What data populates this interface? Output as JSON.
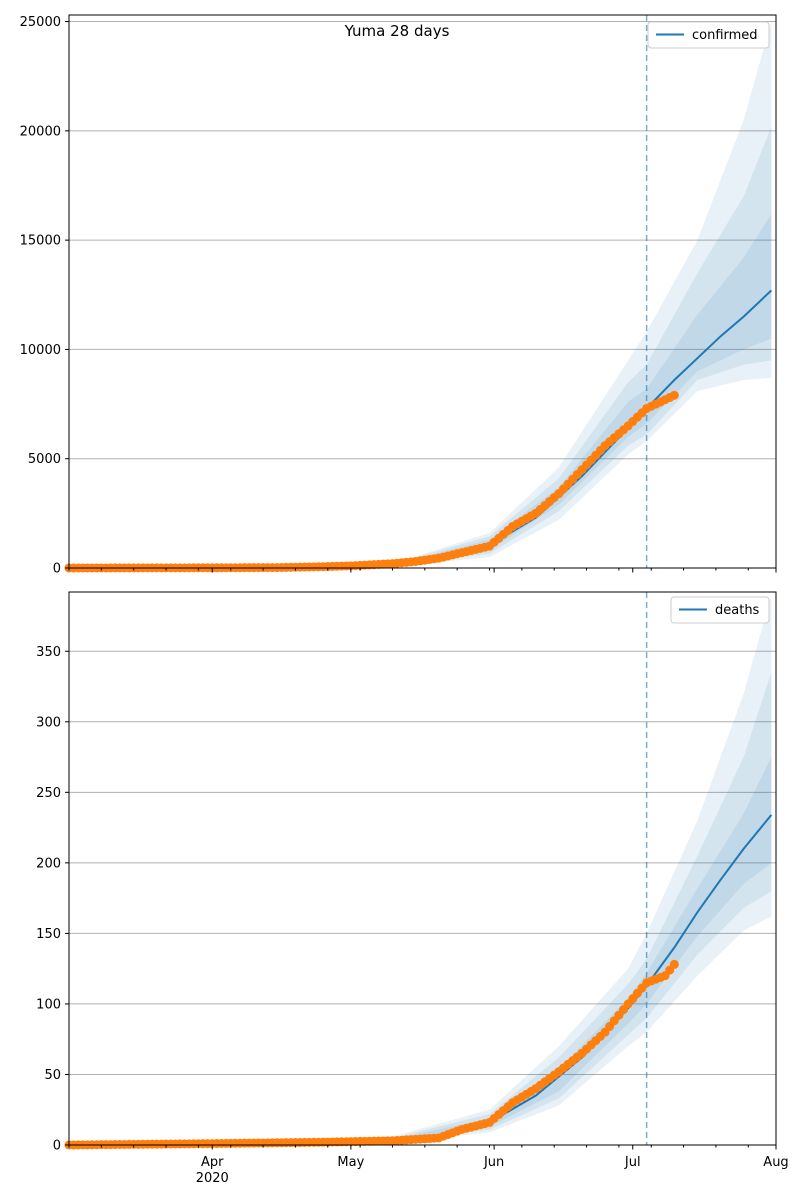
{
  "figure": {
    "title": "Yuma 28 days"
  },
  "chart_data": [
    {
      "type": "line",
      "name": "confirmed-panel",
      "ylim": [
        0,
        25300
      ],
      "yticks": [
        0,
        5000,
        10000,
        15000,
        20000,
        25000
      ],
      "grid": "horizontal",
      "legend": {
        "placement": "top-right",
        "entries": [
          "confirmed"
        ]
      },
      "forecast_start": "2020-07-04",
      "median": {
        "name": "confirmed",
        "x": [
          "2020-05-10",
          "2020-05-20",
          "2020-05-31",
          "2020-06-10",
          "2020-06-20",
          "2020-06-30",
          "2020-07-04",
          "2020-07-10",
          "2020-07-15",
          "2020-07-20",
          "2020-07-25",
          "2020-07-31"
        ],
        "y": [
          120,
          350,
          1050,
          2300,
          4200,
          6400,
          7300,
          8600,
          9600,
          10600,
          11500,
          12700
        ]
      },
      "bands": [
        {
          "level": "outer",
          "x": [
            "2020-05-10",
            "2020-05-31",
            "2020-06-15",
            "2020-06-30",
            "2020-07-04",
            "2020-07-15",
            "2020-07-25",
            "2020-07-31"
          ],
          "upper": [
            200,
            1600,
            4600,
            9500,
            10800,
            15000,
            20500,
            25000
          ],
          "lower": [
            60,
            500,
            2200,
            5200,
            5800,
            8100,
            8600,
            8700
          ]
        },
        {
          "level": "middle",
          "x": [
            "2020-05-10",
            "2020-05-31",
            "2020-06-15",
            "2020-06-30",
            "2020-07-04",
            "2020-07-15",
            "2020-07-25",
            "2020-07-31"
          ],
          "upper": [
            180,
            1450,
            4100,
            8500,
            9300,
            13500,
            17000,
            20200
          ],
          "lower": [
            80,
            650,
            2600,
            5600,
            6100,
            8600,
            9300,
            9500
          ]
        },
        {
          "level": "inner",
          "x": [
            "2020-05-10",
            "2020-05-31",
            "2020-06-15",
            "2020-06-30",
            "2020-07-04",
            "2020-07-15",
            "2020-07-25",
            "2020-07-31"
          ],
          "upper": [
            150,
            1300,
            3700,
            7600,
            8200,
            11600,
            14200,
            16200
          ],
          "lower": [
            95,
            800,
            2900,
            6000,
            6600,
            9000,
            10000,
            10500
          ]
        }
      ],
      "observed": {
        "name": "observed confirmed",
        "x": [
          "2020-03-01",
          "2020-03-15",
          "2020-04-01",
          "2020-04-15",
          "2020-04-25",
          "2020-05-01",
          "2020-05-10",
          "2020-05-15",
          "2020-05-20",
          "2020-05-25",
          "2020-05-31",
          "2020-06-05",
          "2020-06-10",
          "2020-06-15",
          "2020-06-20",
          "2020-06-25",
          "2020-06-30",
          "2020-07-04",
          "2020-07-08",
          "2020-07-10"
        ],
        "y": [
          0,
          5,
          10,
          20,
          60,
          100,
          200,
          300,
          450,
          700,
          1000,
          1900,
          2500,
          3400,
          4500,
          5600,
          6500,
          7300,
          7700,
          7900
        ]
      }
    },
    {
      "type": "line",
      "name": "deaths-panel",
      "ylim": [
        0,
        392
      ],
      "yticks": [
        0,
        50,
        100,
        150,
        200,
        250,
        300,
        350
      ],
      "grid": "horizontal",
      "legend": {
        "placement": "top-right",
        "entries": [
          "deaths"
        ]
      },
      "forecast_start": "2020-07-04",
      "median": {
        "name": "deaths",
        "x": [
          "2020-05-10",
          "2020-05-20",
          "2020-05-31",
          "2020-06-10",
          "2020-06-20",
          "2020-06-30",
          "2020-07-04",
          "2020-07-10",
          "2020-07-15",
          "2020-07-20",
          "2020-07-25",
          "2020-07-31"
        ],
        "y": [
          3,
          6,
          16,
          35,
          62,
          97,
          113,
          140,
          165,
          188,
          210,
          234
        ]
      },
      "bands": [
        {
          "level": "outer",
          "x": [
            "2020-05-10",
            "2020-05-31",
            "2020-06-15",
            "2020-06-30",
            "2020-07-04",
            "2020-07-15",
            "2020-07-25",
            "2020-07-31"
          ],
          "upper": [
            6,
            25,
            70,
            125,
            150,
            230,
            320,
            390
          ],
          "lower": [
            1,
            9,
            28,
            70,
            80,
            120,
            152,
            162
          ]
        },
        {
          "level": "middle",
          "x": [
            "2020-05-10",
            "2020-05-31",
            "2020-06-15",
            "2020-06-30",
            "2020-07-04",
            "2020-07-15",
            "2020-07-25",
            "2020-07-31"
          ],
          "upper": [
            5,
            22,
            62,
            114,
            132,
            205,
            275,
            335
          ],
          "lower": [
            2,
            11,
            33,
            78,
            90,
            135,
            168,
            180
          ]
        },
        {
          "level": "inner",
          "x": [
            "2020-05-10",
            "2020-05-31",
            "2020-06-15",
            "2020-06-30",
            "2020-07-04",
            "2020-07-15",
            "2020-07-25",
            "2020-07-31"
          ],
          "upper": [
            4,
            19,
            54,
            104,
            122,
            182,
            235,
            275
          ],
          "lower": [
            2,
            13,
            38,
            86,
            100,
            148,
            185,
            200
          ]
        }
      ],
      "observed": {
        "name": "observed deaths",
        "x": [
          "2020-03-01",
          "2020-04-01",
          "2020-04-25",
          "2020-05-10",
          "2020-05-15",
          "2020-05-20",
          "2020-05-25",
          "2020-05-31",
          "2020-06-05",
          "2020-06-10",
          "2020-06-15",
          "2020-06-20",
          "2020-06-25",
          "2020-06-30",
          "2020-07-04",
          "2020-07-08",
          "2020-07-10"
        ],
        "y": [
          0,
          1,
          2,
          3,
          4,
          5,
          11,
          16,
          30,
          40,
          52,
          65,
          80,
          100,
          115,
          120,
          128
        ]
      }
    }
  ],
  "x_axis": {
    "xlim": [
      "2020-03-01",
      "2020-08-01"
    ],
    "major_ticks": [
      {
        "date": "2020-04-01",
        "label": "Apr",
        "sublabel": "2020"
      },
      {
        "date": "2020-05-01",
        "label": "May",
        "sublabel": ""
      },
      {
        "date": "2020-06-01",
        "label": "Jun",
        "sublabel": ""
      },
      {
        "date": "2020-07-01",
        "label": "Jul",
        "sublabel": ""
      },
      {
        "date": "2020-08-01",
        "label": "Aug",
        "sublabel": ""
      }
    ],
    "minor_tick_interval": "weekly"
  },
  "colors": {
    "median": "#1f77b4",
    "band": "#1f77b4",
    "observed": "#ff7f0e",
    "grid": "#b0b0b0",
    "forecast_line": "#1f77b4"
  }
}
